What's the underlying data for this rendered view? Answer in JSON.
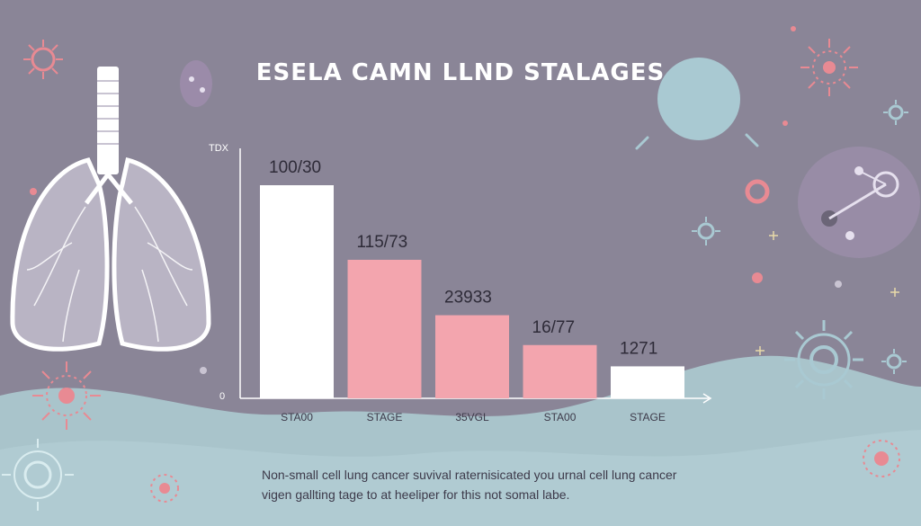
{
  "colors": {
    "background": "#8a8597",
    "wave": "#a9c4cb",
    "wave_dark": "#97b5bd",
    "bar_white": "#ffffff",
    "bar_pink": "#f3a5ae",
    "accent_pink": "#e88a93",
    "accent_blue": "#a9c9d2"
  },
  "chart_data": {
    "type": "bar",
    "title": "ESELA CAMN LLND STALAGES",
    "ylabel": "TDX",
    "y_zero_label": "0",
    "ylim": [
      0,
      100
    ],
    "categories": [
      "STA00",
      "STAGE",
      "35VGL",
      "STA00",
      "STAGE"
    ],
    "values": [
      100,
      65,
      39,
      25,
      15
    ],
    "data_labels": [
      "100/30",
      "115/73",
      "23933",
      "16/77",
      "1271"
    ],
    "bar_colors": [
      "#ffffff",
      "#f3a5ae",
      "#f3a5ae",
      "#f3a5ae",
      "#ffffff"
    ],
    "grid": false
  },
  "caption": {
    "line1": "Non-small cell lung cancer suvival raternisicated you urnal cell lung cancer",
    "line2": "vigen gallting tage to at heeliper for this not somal labe."
  },
  "decorations": {
    "icons": [
      "lungs-icon",
      "virus-icon",
      "molecule-icon",
      "sphere-icon"
    ]
  }
}
